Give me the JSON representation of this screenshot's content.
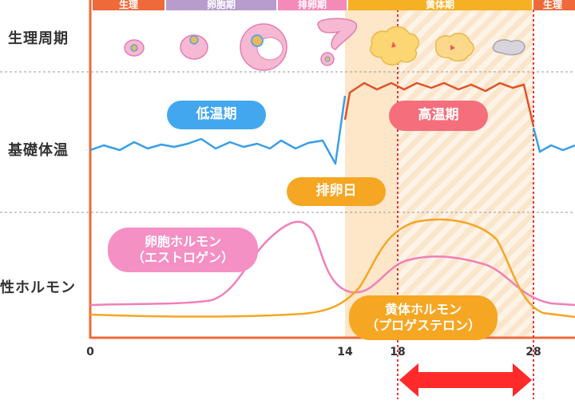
{
  "row_labels": {
    "cycle": "生理周期",
    "temperature": "基礎体温",
    "hormone": "性ホルモン"
  },
  "phases": [
    {
      "label": "生理",
      "color": "#ee6a3a"
    },
    {
      "label": "卵胞期",
      "color": "#b89ccd"
    },
    {
      "label": "排卵期",
      "color": "#f48ab8"
    },
    {
      "label": "黄体期",
      "color": "#f6b024"
    },
    {
      "label": "生理",
      "color": "#ee6a3a"
    }
  ],
  "pills": {
    "low_temp": "低温期",
    "high_temp": "高温期",
    "ovulation_day": "排卵日",
    "follicle_hormone": [
      "卵胞ホルモン",
      "（エストロゲン）"
    ],
    "luteal_hormone": [
      "黄体ホルモン",
      "（プロゲステロン）"
    ]
  },
  "x_axis": {
    "ticks": [
      "0",
      "14",
      "18",
      "28"
    ]
  },
  "colors": {
    "axis": "#ee6a3a",
    "low_temp_line": "#3a9ee6",
    "high_temp_line": "#e0522a",
    "estrogen": "#f07fba",
    "progesterone": "#f5a623",
    "ovulation_band": "#fde7c8",
    "marker": "#e8343a",
    "low_pill": "#42a7ee",
    "high_pill": "#f56e7c",
    "ovulation_pill": "#f5a623",
    "estrogen_pill": "#f490c4",
    "progesterone_pill": "#f5a623"
  },
  "icons": [
    "ovum-icon-small",
    "ovum-icon-medium",
    "follicle-icon-large",
    "ovulation-icon",
    "corpus-luteum-icon",
    "corpus-luteum-icon-2",
    "corpus-albicans-icon"
  ]
}
